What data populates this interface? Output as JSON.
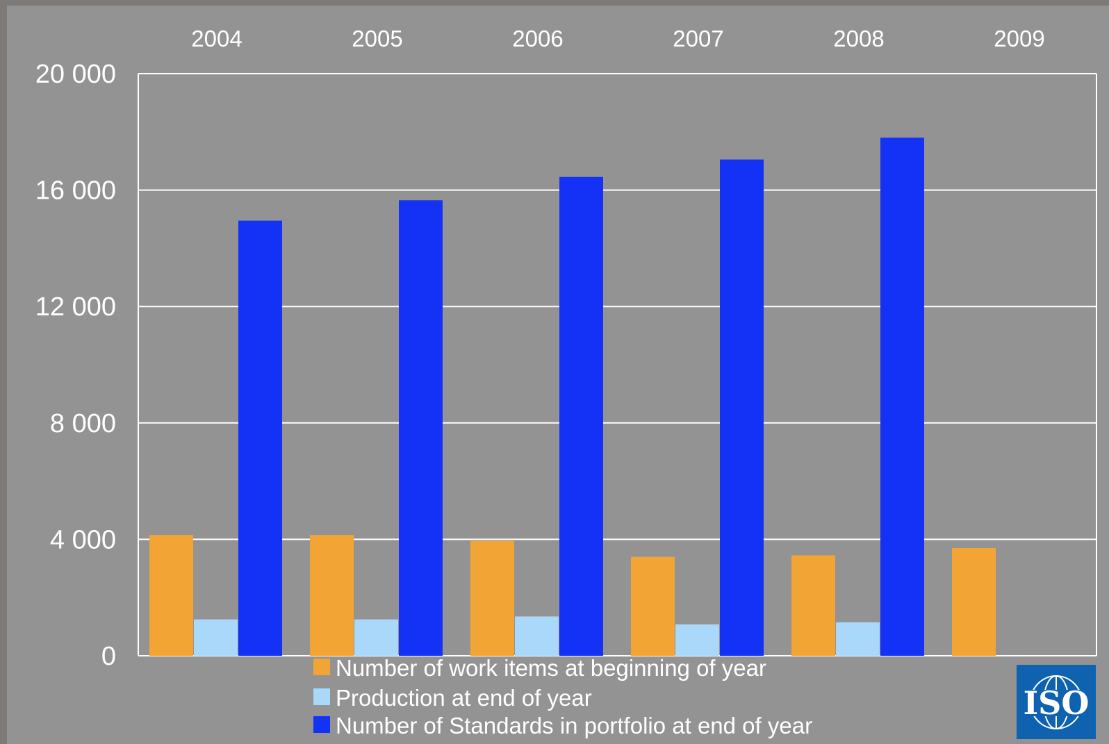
{
  "chart_data": {
    "type": "bar",
    "categories": [
      "2004",
      "2005",
      "2006",
      "2007",
      "2008",
      "2009"
    ],
    "series": [
      {
        "name": "Number of work items at beginning of year",
        "color": "#f2a534",
        "values": [
          4150,
          4150,
          3950,
          3400,
          3450,
          3700
        ]
      },
      {
        "name": "Production at end of year",
        "color": "#aad8fb",
        "values": [
          1250,
          1250,
          1350,
          1080,
          1150,
          null
        ]
      },
      {
        "name": "Number of Standards in portfolio at end of year",
        "color": "#1432f5",
        "values": [
          14950,
          15650,
          16450,
          17050,
          17800,
          null
        ]
      }
    ],
    "yticks": [
      "20 000",
      "16 000",
      "12 000",
      "8 000",
      "4 000",
      "0"
    ],
    "ylim": [
      0,
      20000
    ],
    "grid": true,
    "category_labels_position": "top",
    "legend_position": "bottom-center"
  },
  "logo": {
    "text": "ISO",
    "color": "#0e62b0",
    "icon": "globe-icon"
  }
}
